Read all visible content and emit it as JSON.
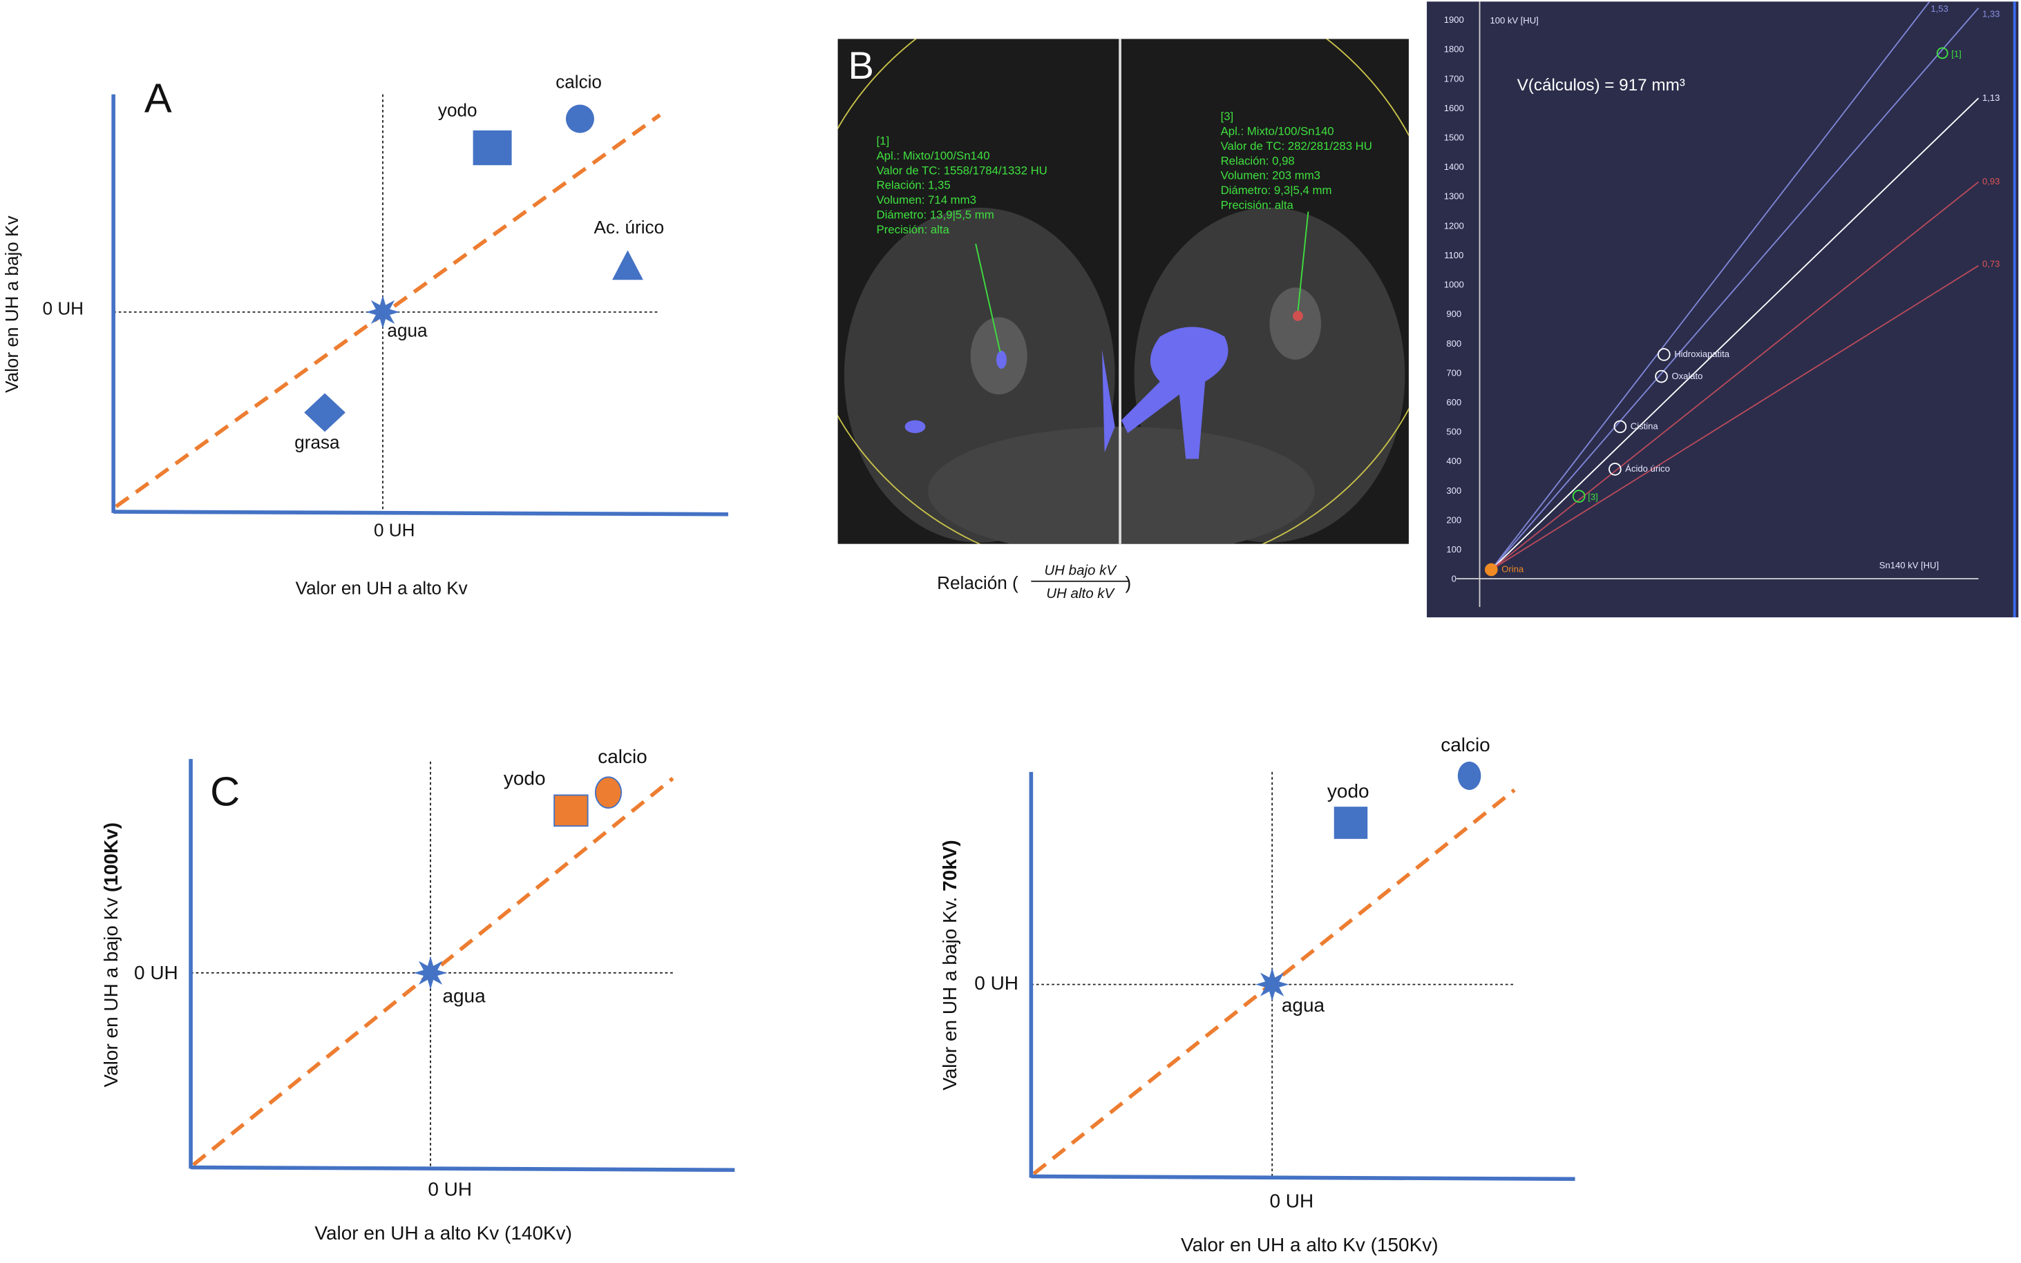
{
  "panels": {
    "a": {
      "label": "A",
      "x_axis_label": "Valor en UH a alto Kv",
      "y_axis_label": "Valor en UH a bajo Kv",
      "x_zero": "0 UH",
      "y_zero": "0 UH",
      "points": [
        "yodo",
        "calcio",
        "Ac. úrico",
        "agua",
        "grasa"
      ]
    },
    "b": {
      "label": "B",
      "ct_left": {
        "title": "[1]",
        "lines": [
          "Apl.: Mixto/100/Sn140",
          "Valor de TC: 1558/1784/1332 HU",
          "Relación: 1,35",
          "Volumen: 714 mm3",
          "Diámetro: 13,9|5,5 mm",
          "Precisión: alta"
        ]
      },
      "ct_right": {
        "title": "[3]",
        "lines": [
          "Apl.: Mixto/100/Sn140",
          "Valor de TC: 282/281/283 HU",
          "Relación: 0,98",
          "Volumen: 203 mm3",
          "Diámetro: 9,3|5,4 mm",
          "Precisión: alta"
        ]
      },
      "caption": "Relación (",
      "numerator": "UH bajo kV",
      "denominator": "UH alto kV",
      "caption_end": ")",
      "plot": {
        "y_axis_title": "100 kV [HU]",
        "x_axis_title": "Sn140 kV [HU]",
        "volume": "V(cálculos) = 917 mm³",
        "yticks": [
          0,
          100,
          200,
          300,
          400,
          500,
          600,
          700,
          800,
          900,
          1000,
          1100,
          1200,
          1300,
          1400,
          1500,
          1600,
          1700,
          1800,
          1900
        ],
        "line_labels": [
          "1,53",
          "1,33",
          "1,13",
          "0,93",
          "0,73"
        ],
        "points": [
          "[1]",
          "Hidroxiapatita",
          "Oxalato",
          "Cistina",
          "Ácido úrico",
          "[3]",
          "Orina"
        ]
      }
    },
    "c": {
      "label": "C",
      "x_axis_label": "Valor en UH a alto Kv (140Kv)",
      "y_axis_label": "Valor en UH a bajo Kv ",
      "y_axis_label_bold": "(100Kv)",
      "x_zero": "0 UH",
      "y_zero": "0 UH",
      "points": [
        "yodo",
        "calcio",
        "agua"
      ]
    },
    "d": {
      "x_axis_label": "Valor en UH a alto Kv (150Kv)",
      "y_axis_label": "Valor en UH a bajo Kv. ",
      "y_axis_label_bold": "70kV)",
      "x_zero": "0 UH",
      "y_zero": "0 UH",
      "points": [
        "yodo",
        "calcio",
        "agua"
      ]
    }
  }
}
